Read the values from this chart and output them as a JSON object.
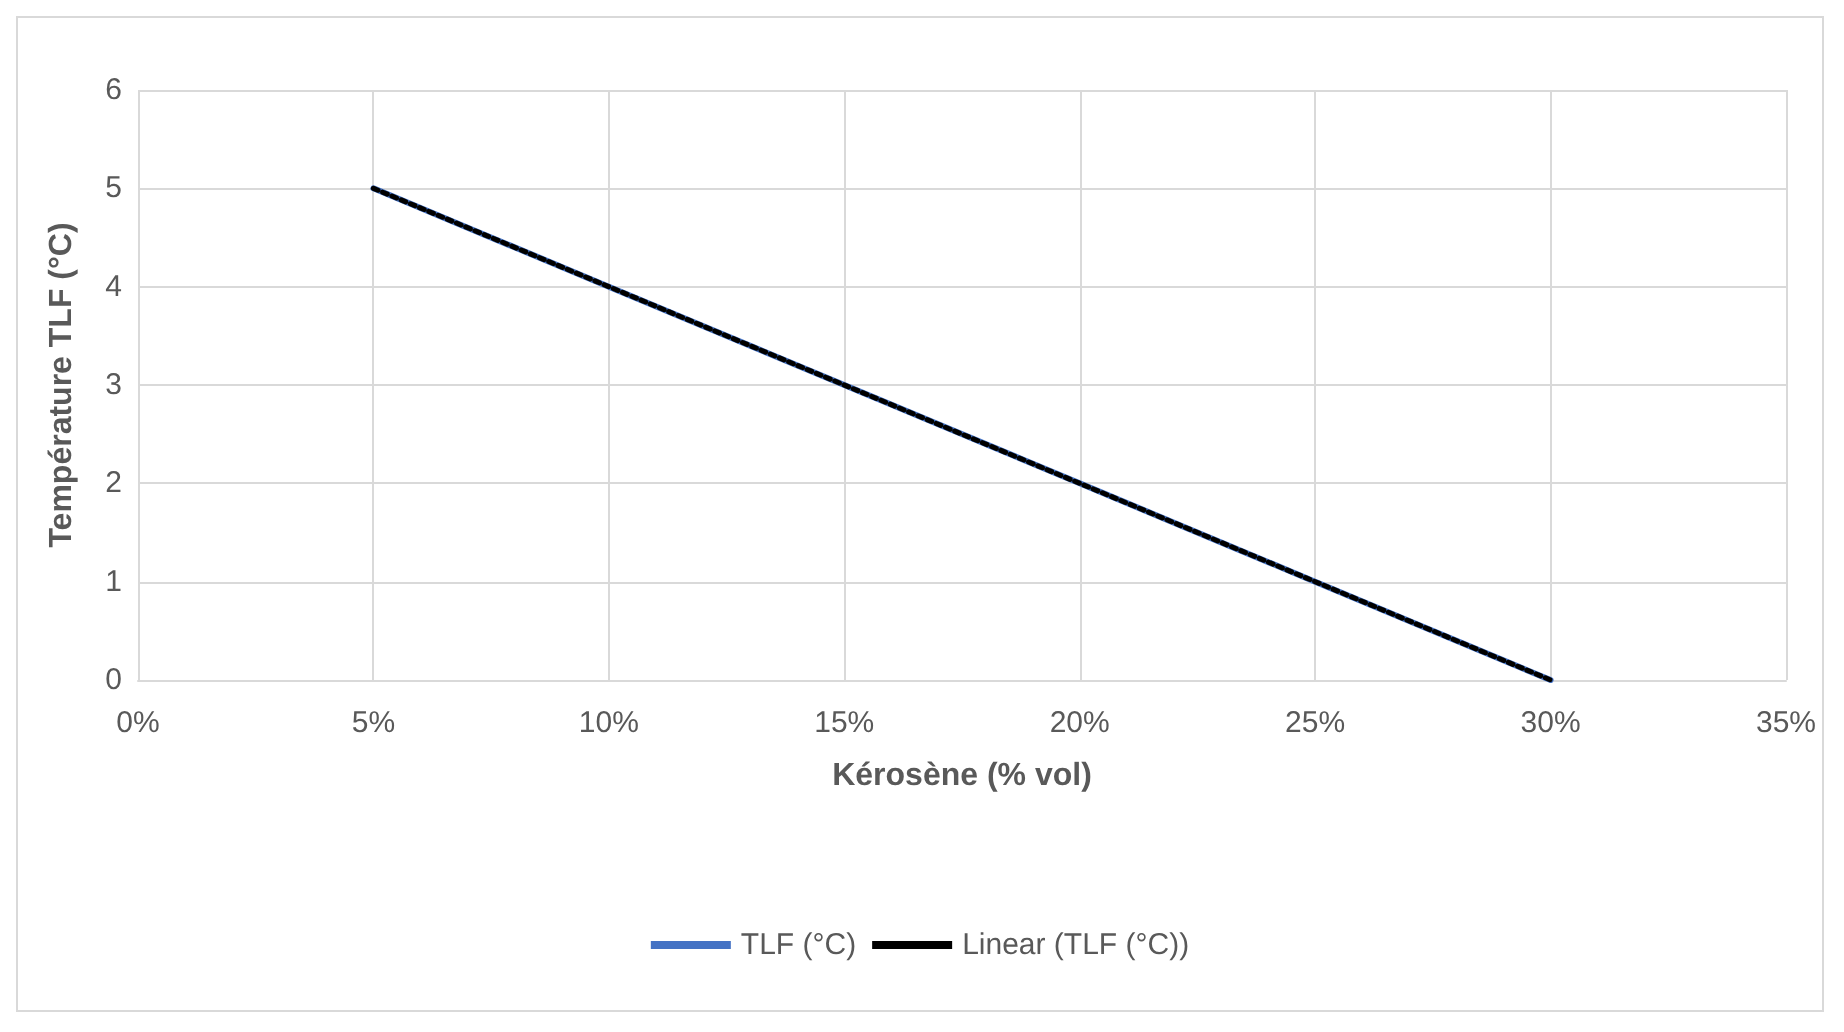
{
  "chart_data": {
    "type": "line",
    "xlabel": "Kérosène (% vol)",
    "ylabel": "Température TLF (°C)",
    "x": [
      5,
      10,
      15,
      20,
      25,
      30
    ],
    "series": [
      {
        "name": "TLF (°C)",
        "color": "#4472c4",
        "values": [
          5,
          4,
          3,
          2,
          1,
          0
        ],
        "line_style": "solid"
      },
      {
        "name": "Linear (TLF (°C))",
        "type": "line",
        "color": "#000000",
        "x": [
          5,
          30
        ],
        "values": [
          5,
          0
        ],
        "line_style": "dotted"
      }
    ],
    "xlim": [
      0,
      35
    ],
    "xticks": [
      {
        "value": 0,
        "label": "0%"
      },
      {
        "value": 5,
        "label": "5%"
      },
      {
        "value": 10,
        "label": "10%"
      },
      {
        "value": 15,
        "label": "15%"
      },
      {
        "value": 20,
        "label": "20%"
      },
      {
        "value": 25,
        "label": "25%"
      },
      {
        "value": 30,
        "label": "30%"
      },
      {
        "value": 35,
        "label": "35%"
      }
    ],
    "ylim": [
      0,
      6
    ],
    "yticks": [
      0,
      1,
      2,
      3,
      4,
      5,
      6
    ],
    "grid": true,
    "legend": "bottom",
    "marker": "none"
  }
}
